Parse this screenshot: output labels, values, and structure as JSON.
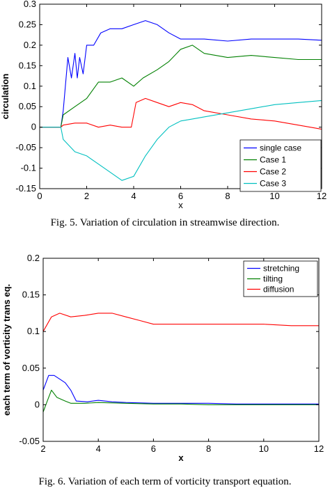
{
  "chart_data": [
    {
      "type": "line",
      "title": "",
      "xlabel": "x",
      "ylabel": "circulation",
      "xlim": [
        0,
        12
      ],
      "ylim": [
        -0.15,
        0.3
      ],
      "xticks": [
        "0",
        "2",
        "4",
        "6",
        "8",
        "10",
        "12"
      ],
      "yticks": [
        "-0.15",
        "-0.1",
        "-0.05",
        "0",
        "0.05",
        "0.1",
        "0.15",
        "0.2",
        "0.25",
        "0.3"
      ],
      "grid": false,
      "legend_position": "bottom-right",
      "series": [
        {
          "name": "single case",
          "color": "#0000ff",
          "x": [
            0,
            0.9,
            1.0,
            1.2,
            1.35,
            1.5,
            1.6,
            1.7,
            1.85,
            2.0,
            2.3,
            2.6,
            3.0,
            3.5,
            4.0,
            4.5,
            5.0,
            5.5,
            6.0,
            6.5,
            7.0,
            8.0,
            9.0,
            10.0,
            11.0,
            12.0
          ],
          "y": [
            0,
            0,
            0.04,
            0.17,
            0.12,
            0.18,
            0.12,
            0.17,
            0.13,
            0.2,
            0.2,
            0.23,
            0.24,
            0.24,
            0.25,
            0.26,
            0.25,
            0.23,
            0.215,
            0.215,
            0.215,
            0.21,
            0.215,
            0.215,
            0.215,
            0.212
          ]
        },
        {
          "name": "Case 1",
          "color": "#008000",
          "x": [
            0,
            0.9,
            1.0,
            1.5,
            2.0,
            2.5,
            3.0,
            3.5,
            4.0,
            4.4,
            5.0,
            5.5,
            6.0,
            6.5,
            7.0,
            8.0,
            9.0,
            10.0,
            11.0,
            12.0
          ],
          "y": [
            0,
            0,
            0.03,
            0.05,
            0.07,
            0.11,
            0.11,
            0.12,
            0.1,
            0.12,
            0.14,
            0.16,
            0.19,
            0.2,
            0.18,
            0.17,
            0.175,
            0.17,
            0.165,
            0.165
          ]
        },
        {
          "name": "Case 2",
          "color": "#ff0000",
          "x": [
            0,
            0.9,
            1.0,
            1.5,
            2.0,
            2.5,
            3.0,
            3.5,
            3.9,
            4.1,
            4.5,
            5.0,
            5.5,
            6.0,
            6.5,
            7.0,
            8.0,
            9.0,
            10.0,
            11.0,
            12.0
          ],
          "y": [
            0,
            0,
            0.005,
            0.01,
            0.01,
            0.0,
            0.005,
            0.0,
            0.0,
            0.06,
            0.07,
            0.06,
            0.05,
            0.06,
            0.055,
            0.04,
            0.03,
            0.02,
            0.015,
            0.005,
            -0.005
          ]
        },
        {
          "name": "Case 3",
          "color": "#00c0c0",
          "x": [
            0,
            0.9,
            1.0,
            1.5,
            2.0,
            2.5,
            3.0,
            3.5,
            4.0,
            4.5,
            5.0,
            5.5,
            6.0,
            6.5,
            7.0,
            8.0,
            9.0,
            10.0,
            11.0,
            12.0
          ],
          "y": [
            0,
            0,
            -0.03,
            -0.06,
            -0.07,
            -0.09,
            -0.11,
            -0.13,
            -0.12,
            -0.07,
            -0.03,
            0.0,
            0.015,
            0.02,
            0.025,
            0.035,
            0.045,
            0.055,
            0.06,
            0.065
          ]
        }
      ]
    },
    {
      "type": "line",
      "title": "",
      "xlabel": "x",
      "ylabel": "each term of vorticity trans eq.",
      "xlim": [
        2,
        12
      ],
      "ylim": [
        -0.05,
        0.2
      ],
      "xticks": [
        "2",
        "4",
        "6",
        "8",
        "10",
        "12"
      ],
      "yticks": [
        "-0.05",
        "0",
        "0.05",
        "0.1",
        "0.15",
        "0.2"
      ],
      "grid": false,
      "legend_position": "top-right",
      "series": [
        {
          "name": "stretching",
          "color": "#0000ff",
          "x": [
            2.0,
            2.2,
            2.4,
            2.6,
            2.8,
            3.0,
            3.2,
            3.6,
            4.0,
            4.5,
            5.0,
            6.0,
            7.0,
            8.0,
            9.0,
            10.0,
            11.0,
            12.0
          ],
          "y": [
            0.02,
            0.04,
            0.04,
            0.035,
            0.03,
            0.02,
            0.005,
            0.004,
            0.006,
            0.004,
            0.003,
            0.002,
            0.002,
            0.002,
            0.001,
            0.001,
            0.001,
            0.001
          ]
        },
        {
          "name": "tilting",
          "color": "#008000",
          "x": [
            2.0,
            2.15,
            2.3,
            2.5,
            2.8,
            3.0,
            3.5,
            4.0,
            5.0,
            6.0,
            7.0,
            8.0,
            9.0,
            10.0,
            11.0,
            12.0
          ],
          "y": [
            -0.01,
            0.005,
            0.02,
            0.01,
            0.005,
            0.002,
            0.002,
            0.003,
            0.002,
            0.001,
            0.001,
            0.0,
            0.0,
            0.0,
            0.0,
            0.0
          ]
        },
        {
          "name": "diffusion",
          "color": "#ff0000",
          "x": [
            2.0,
            2.3,
            2.6,
            3.0,
            3.5,
            4.0,
            4.5,
            5.0,
            5.5,
            6.0,
            6.5,
            7.0,
            8.0,
            9.0,
            10.0,
            11.0,
            12.0
          ],
          "y": [
            0.1,
            0.12,
            0.125,
            0.12,
            0.122,
            0.125,
            0.125,
            0.12,
            0.115,
            0.11,
            0.11,
            0.11,
            0.11,
            0.11,
            0.11,
            0.108,
            0.108
          ]
        }
      ]
    }
  ],
  "captions": {
    "fig5": "Fig. 5.    Variation of circulation in streamwise direction.",
    "fig6": "Fig. 6.    Variation of each term of vorticity transport equation."
  }
}
